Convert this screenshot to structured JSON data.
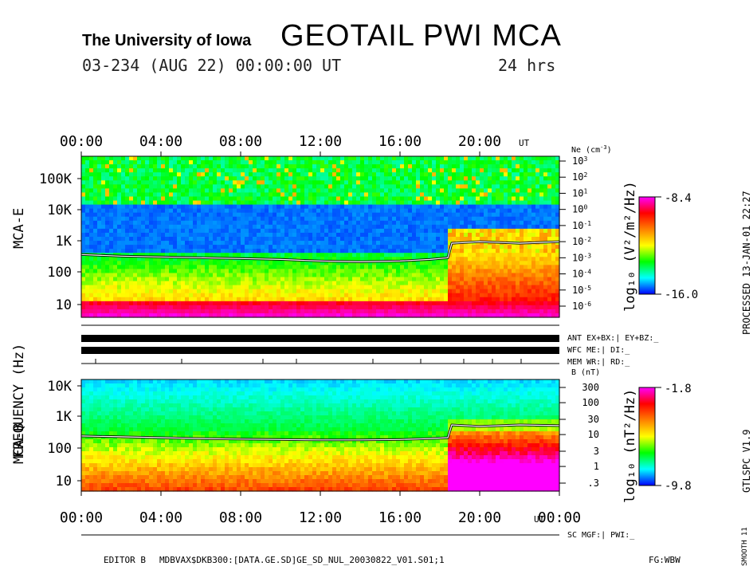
{
  "header": {
    "institution": "The University of Iowa",
    "title": "GEOTAIL PWI MCA",
    "date_line": "03-234 (AUG 22) 00:00:00 UT",
    "span": "24 hrs"
  },
  "chart_data": [
    {
      "type": "heatmap",
      "panel": "MCA-E",
      "ylabel": "MCA-E",
      "x_ticks": [
        "00:00",
        "04:00",
        "08:00",
        "12:00",
        "16:00",
        "20:00"
      ],
      "x_unit": "UT",
      "y_ticks": [
        "100K",
        "10K",
        "1K",
        "100",
        "10"
      ],
      "y_scale": "log",
      "right_axis_title": "Ne (cm",
      "right_axis_title_sup": "-3",
      "right_axis_title_end": ")",
      "right_axis_ticks": [
        "3",
        "2",
        "1",
        "0",
        "-1",
        "-2",
        "-3",
        "-4",
        "-5",
        "-6"
      ],
      "colorbar_label": "log₁₀ (V²/m²/Hz)",
      "colorbar_range": [
        "-8.4",
        "-16.0"
      ],
      "colorscale": [
        "#0000ff",
        "#00ffff",
        "#00ff00",
        "#ffff00",
        "#ff8000",
        "#ff0000",
        "#ff00ff"
      ],
      "density_line_cm3": {
        "hours": [
          0,
          2,
          4,
          6,
          8,
          10,
          12,
          14,
          16,
          17.5,
          18.4,
          18.6,
          20,
          22,
          24
        ],
        "log_ne": [
          -2.8,
          -2.9,
          -2.95,
          -3.0,
          -3.05,
          -3.1,
          -3.2,
          -3.25,
          -3.2,
          -3.1,
          -3.0,
          -2.1,
          -2.0,
          -2.1,
          -2.0
        ]
      }
    },
    {
      "type": "heatmap",
      "panel": "MCA-B",
      "ylabel": "MCA-B",
      "x_ticks": [
        "00:00",
        "04:00",
        "08:00",
        "12:00",
        "16:00",
        "20:00",
        "00:00"
      ],
      "x_unit": "UT",
      "y_ticks": [
        "10K",
        "1K",
        "100",
        "10"
      ],
      "y_scale": "log",
      "right_axis_title": "B (nT)",
      "right_axis_ticks": [
        "300",
        "100",
        "30",
        "10",
        "3",
        "1",
        ".3"
      ],
      "colorbar_label": "log₁₀ (nT²/Hz)",
      "colorbar_range": [
        "-1.8",
        "-9.8"
      ],
      "colorscale": [
        "#0000ff",
        "#00ffff",
        "#00ff00",
        "#ffff00",
        "#ff8000",
        "#ff0000",
        "#ff00ff"
      ],
      "b_field_line_nT": {
        "hours": [
          0,
          2,
          4,
          6,
          8,
          10,
          12,
          14,
          16,
          17.5,
          18.4,
          18.6,
          20,
          22,
          24
        ],
        "b_nT": [
          9,
          8.5,
          8,
          7.5,
          7.2,
          7,
          6.8,
          6.8,
          7,
          7.5,
          8,
          20,
          18,
          20,
          19
        ]
      }
    }
  ],
  "frequency_label": "FREQUENCY (Hz)",
  "status_rows": [
    {
      "label": "ANT EX+BX:| EY+BZ:_"
    },
    {
      "label": "WFC ME:|   DI:_"
    },
    {
      "label": "MEM WR:|   RD:_"
    }
  ],
  "sc_row": "SC MGF:|   PWI:_",
  "footer": {
    "editor": "EDITOR B",
    "path": "MDBVAX$DKB300:[DATA.GE.SD]GE_SD_NUL_20030822_V01.S01;1",
    "fg": "FG:WBW",
    "smooth": "SMOOTH 11"
  },
  "side": {
    "processed": "PROCESSED 13-JAN-01  22:27",
    "version": "GTLSPC   V1.9"
  }
}
